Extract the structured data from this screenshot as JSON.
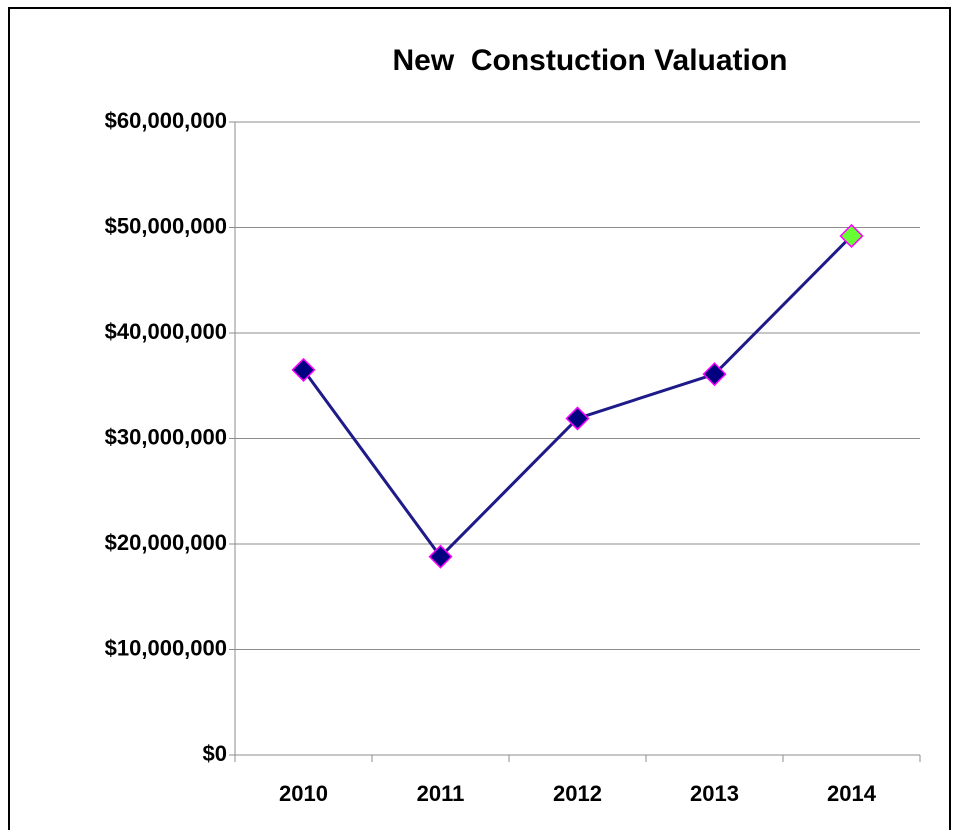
{
  "chart_data": {
    "type": "line",
    "title": "New  Constuction Valuation",
    "categories": [
      "2010",
      "2011",
      "2012",
      "2013",
      "2014"
    ],
    "values": [
      36500000,
      18800000,
      31900000,
      36100000,
      49200000
    ],
    "color": "#1f1a8a",
    "marker_colors": [
      "#000080",
      "#000080",
      "#000080",
      "#000080",
      "#66ff33"
    ],
    "marker_edge_color": "#ff00ff",
    "ylim": [
      0,
      60000000
    ],
    "yticks": [
      {
        "value": 0,
        "label": "$0"
      },
      {
        "value": 10000000,
        "label": "$10,000,000"
      },
      {
        "value": 20000000,
        "label": "$20,000,000"
      },
      {
        "value": 30000000,
        "label": "$30,000,000"
      },
      {
        "value": 40000000,
        "label": "$40,000,000"
      },
      {
        "value": 50000000,
        "label": "$50,000,000"
      },
      {
        "value": 60000000,
        "label": "$60,000,000"
      }
    ],
    "grid": true
  }
}
